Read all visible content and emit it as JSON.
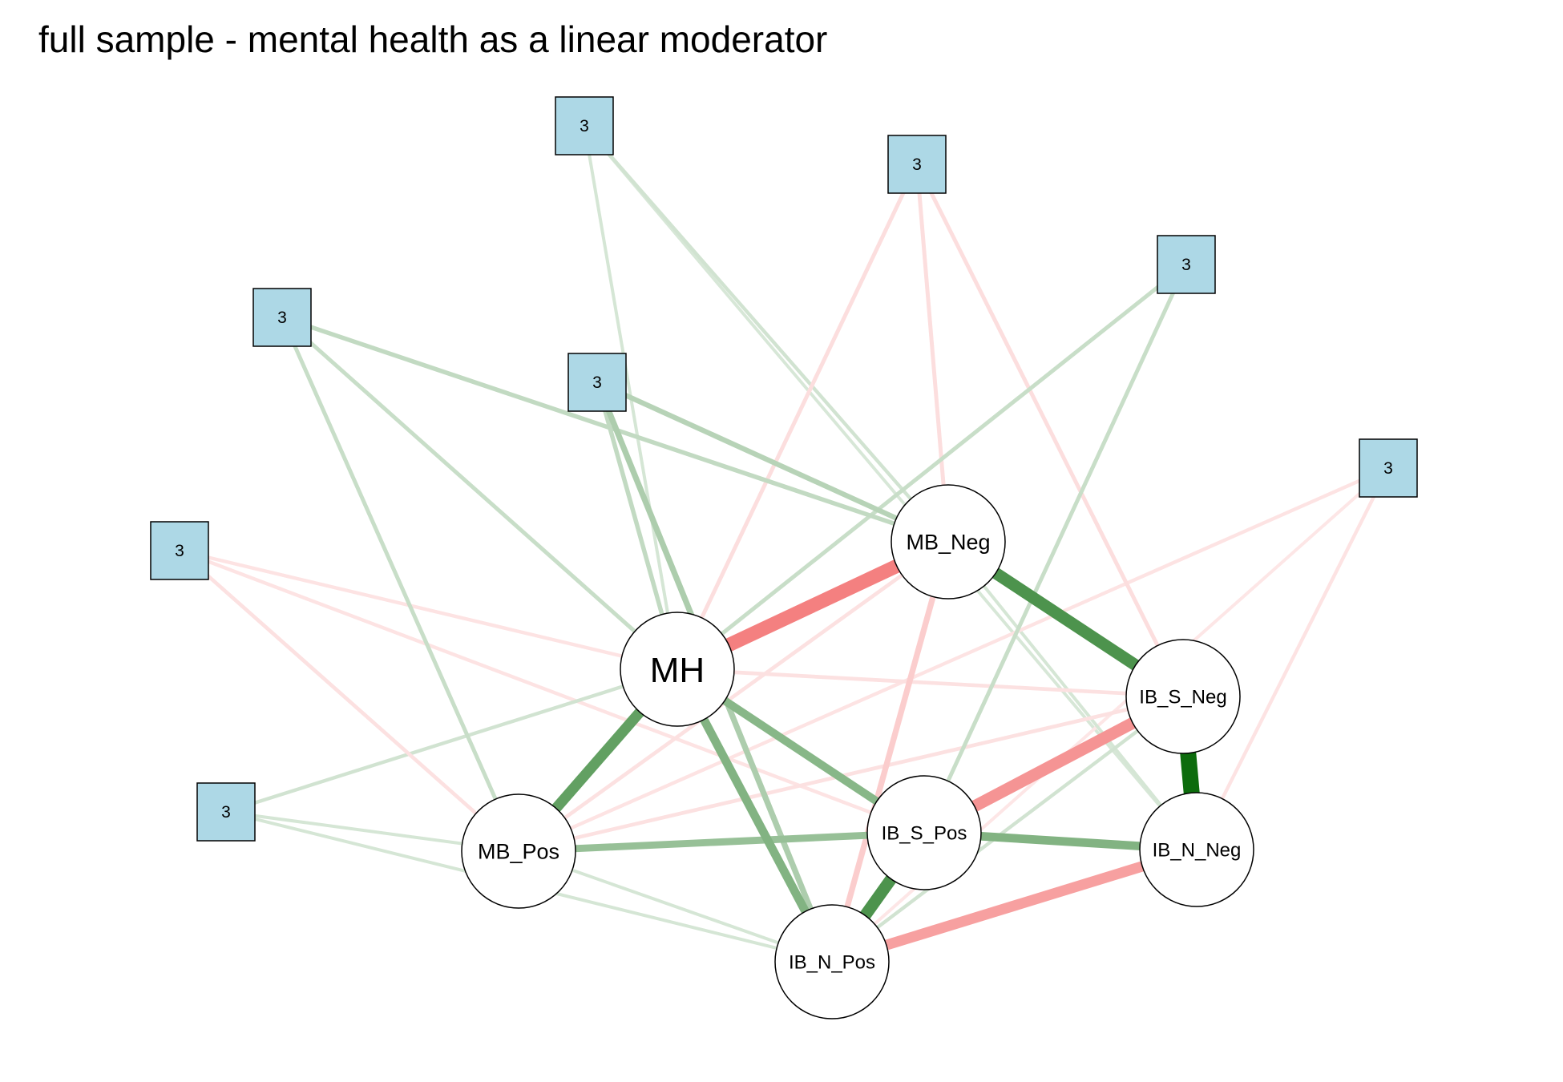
{
  "title": "full sample - mental health as a linear moderator",
  "colors": {
    "positive": "#006400",
    "negative": "#f26d6d",
    "factor_fill": "#add8e6",
    "node_fill": "#ffffff"
  },
  "nodes": [
    {
      "id": "MH",
      "label": "MH",
      "kind": "variable"
    },
    {
      "id": "MB_Neg",
      "label": "MB_Neg",
      "kind": "variable"
    },
    {
      "id": "MB_Pos",
      "label": "MB_Pos",
      "kind": "variable"
    },
    {
      "id": "IB_S_Neg",
      "label": "IB_S_Neg",
      "kind": "variable"
    },
    {
      "id": "IB_S_Pos",
      "label": "IB_S_Pos",
      "kind": "variable"
    },
    {
      "id": "IB_N_Neg",
      "label": "IB_N_Neg",
      "kind": "variable"
    },
    {
      "id": "IB_N_Pos",
      "label": "IB_N_Pos",
      "kind": "variable"
    },
    {
      "id": "f1",
      "label": "3",
      "kind": "factor"
    },
    {
      "id": "f2",
      "label": "3",
      "kind": "factor"
    },
    {
      "id": "f3",
      "label": "3",
      "kind": "factor"
    },
    {
      "id": "f4",
      "label": "3",
      "kind": "factor"
    },
    {
      "id": "f5",
      "label": "3",
      "kind": "factor"
    },
    {
      "id": "f6",
      "label": "3",
      "kind": "factor"
    },
    {
      "id": "f7",
      "label": "3",
      "kind": "factor"
    },
    {
      "id": "f8",
      "label": "3",
      "kind": "factor"
    }
  ],
  "edges": [
    {
      "from": "IB_S_Neg",
      "to": "IB_N_Neg",
      "sign": "positive",
      "weight": 1.0
    },
    {
      "from": "MB_Neg",
      "to": "IB_S_Neg",
      "sign": "positive",
      "weight": 0.7
    },
    {
      "from": "MH",
      "to": "MB_Pos",
      "sign": "positive",
      "weight": 0.6
    },
    {
      "from": "IB_S_Pos",
      "to": "IB_N_Pos",
      "sign": "positive",
      "weight": 0.7
    },
    {
      "from": "MH",
      "to": "IB_N_Pos",
      "sign": "positive",
      "weight": 0.45
    },
    {
      "from": "MH",
      "to": "IB_S_Pos",
      "sign": "positive",
      "weight": 0.42
    },
    {
      "from": "IB_S_Pos",
      "to": "IB_N_Neg",
      "sign": "positive",
      "weight": 0.45
    },
    {
      "from": "MB_Pos",
      "to": "IB_S_Pos",
      "sign": "positive",
      "weight": 0.35
    },
    {
      "from": "MH",
      "to": "MB_Neg",
      "sign": "negative",
      "weight": 0.85
    },
    {
      "from": "IB_S_Neg",
      "to": "IB_S_Pos",
      "sign": "negative",
      "weight": 0.7
    },
    {
      "from": "IB_N_Neg",
      "to": "IB_N_Pos",
      "sign": "negative",
      "weight": 0.6
    },
    {
      "from": "MB_Neg",
      "to": "IB_N_Pos",
      "sign": "negative",
      "weight": 0.25
    },
    {
      "from": "f1",
      "to": "MB_Neg",
      "sign": "positive",
      "weight": 0.2
    },
    {
      "from": "f1",
      "to": "IB_N_Pos",
      "sign": "positive",
      "weight": 0.25
    },
    {
      "from": "f1",
      "to": "MH",
      "sign": "positive",
      "weight": 0.15
    },
    {
      "from": "f2",
      "to": "MB_Neg",
      "sign": "positive",
      "weight": 0.15
    },
    {
      "from": "f2",
      "to": "MH",
      "sign": "positive",
      "weight": 0.12
    },
    {
      "from": "f2",
      "to": "MB_Pos",
      "sign": "positive",
      "weight": 0.12
    },
    {
      "from": "f3",
      "to": "MB_Neg",
      "sign": "positive",
      "weight": 0.08
    },
    {
      "from": "f3",
      "to": "MH",
      "sign": "positive",
      "weight": 0.06
    },
    {
      "from": "f3",
      "to": "IB_N_Neg",
      "sign": "positive",
      "weight": 0.05
    },
    {
      "from": "f4",
      "to": "MH",
      "sign": "negative",
      "weight": 0.12
    },
    {
      "from": "f4",
      "to": "MB_Neg",
      "sign": "negative",
      "weight": 0.12
    },
    {
      "from": "f4",
      "to": "IB_S_Neg",
      "sign": "negative",
      "weight": 0.12
    },
    {
      "from": "f5",
      "to": "MH",
      "sign": "positive",
      "weight": 0.12
    },
    {
      "from": "f5",
      "to": "IB_S_Pos",
      "sign": "positive",
      "weight": 0.12
    },
    {
      "from": "f6",
      "to": "MB_Pos",
      "sign": "negative",
      "weight": 0.1
    },
    {
      "from": "f6",
      "to": "MH",
      "sign": "negative",
      "weight": 0.08
    },
    {
      "from": "f6",
      "to": "IB_S_Pos",
      "sign": "negative",
      "weight": 0.08
    },
    {
      "from": "f7",
      "to": "IB_N_Neg",
      "sign": "negative",
      "weight": 0.08
    },
    {
      "from": "f7",
      "to": "MB_Pos",
      "sign": "negative",
      "weight": 0.08
    },
    {
      "from": "f7",
      "to": "IB_N_Pos",
      "sign": "negative",
      "weight": 0.06
    },
    {
      "from": "f8",
      "to": "MH",
      "sign": "positive",
      "weight": 0.08
    },
    {
      "from": "f8",
      "to": "IB_N_Pos",
      "sign": "positive",
      "weight": 0.06
    },
    {
      "from": "f8",
      "to": "MB_Pos",
      "sign": "positive",
      "weight": 0.06
    },
    {
      "from": "MB_Pos",
      "to": "MB_Neg",
      "sign": "negative",
      "weight": 0.1
    },
    {
      "from": "MB_Pos",
      "to": "IB_S_Neg",
      "sign": "negative",
      "weight": 0.1
    },
    {
      "from": "MH",
      "to": "IB_S_Neg",
      "sign": "negative",
      "weight": 0.1
    },
    {
      "from": "MB_Neg",
      "to": "IB_N_Neg",
      "sign": "positive",
      "weight": 0.06
    },
    {
      "from": "IB_S_Neg",
      "to": "IB_N_Pos",
      "sign": "positive",
      "weight": 0.08
    },
    {
      "from": "IB_N_Pos",
      "to": "MB_Pos",
      "sign": "positive",
      "weight": 0.06
    }
  ]
}
